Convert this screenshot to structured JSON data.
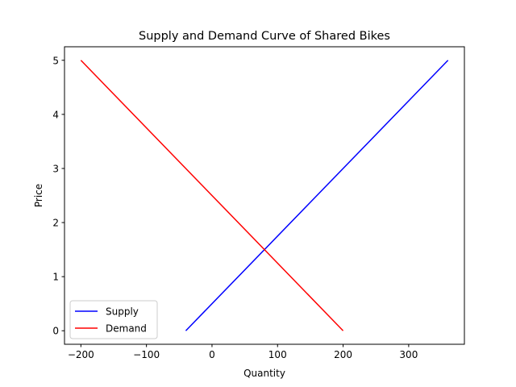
{
  "chart_data": {
    "type": "line",
    "title": "Supply and Demand Curve of Shared Bikes",
    "xlabel": "Quantity",
    "ylabel": "Price",
    "xlim": [
      -225,
      385
    ],
    "ylim": [
      -0.25,
      5.25
    ],
    "xticks": [
      -200,
      -100,
      0,
      100,
      200,
      300
    ],
    "xtick_labels": [
      "−200",
      "−100",
      "0",
      "100",
      "200",
      "300"
    ],
    "yticks": [
      0,
      1,
      2,
      3,
      4,
      5
    ],
    "ytick_labels": [
      "0",
      "1",
      "2",
      "3",
      "4",
      "5"
    ],
    "grid": false,
    "legend_position": "lower-left",
    "series": [
      {
        "name": "Supply",
        "color": "#0000ff",
        "x": [
          -40,
          360
        ],
        "y": [
          0,
          5
        ]
      },
      {
        "name": "Demand",
        "color": "#ff0000",
        "x": [
          -200,
          200
        ],
        "y": [
          5,
          0
        ]
      }
    ]
  }
}
